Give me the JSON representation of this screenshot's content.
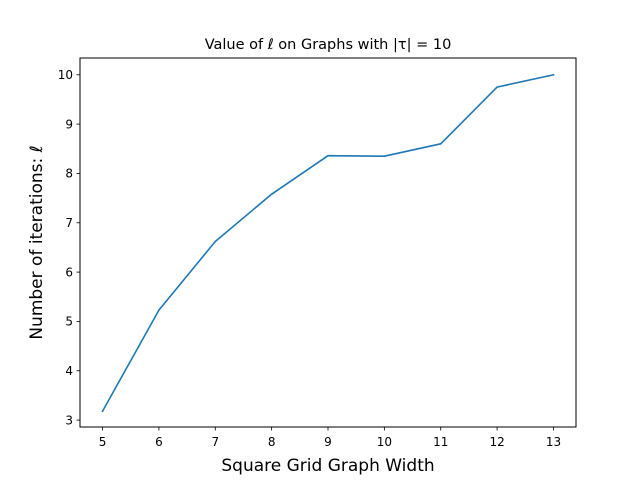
{
  "chart_data": {
    "type": "line",
    "title": "Value of ℓ on Graphs with |τ| = 10",
    "xlabel": "Square Grid Graph Width",
    "ylabel": "Number of iterations: ℓ",
    "x": [
      5,
      6,
      7,
      8,
      9,
      10,
      11,
      12,
      13
    ],
    "series": [
      {
        "values": [
          3.18,
          5.23,
          6.62,
          7.58,
          8.36,
          8.35,
          8.6,
          9.75,
          10.0
        ]
      }
    ],
    "xticks": [
      "5",
      "6",
      "7",
      "8",
      "9",
      "10",
      "11",
      "12",
      "13"
    ],
    "yticks": [
      "3",
      "4",
      "5",
      "6",
      "7",
      "8",
      "9",
      "10"
    ],
    "xlim": [
      4.6,
      13.4
    ],
    "ylim": [
      2.86,
      10.34
    ],
    "grid": false,
    "line_color": "#1f77b4"
  }
}
